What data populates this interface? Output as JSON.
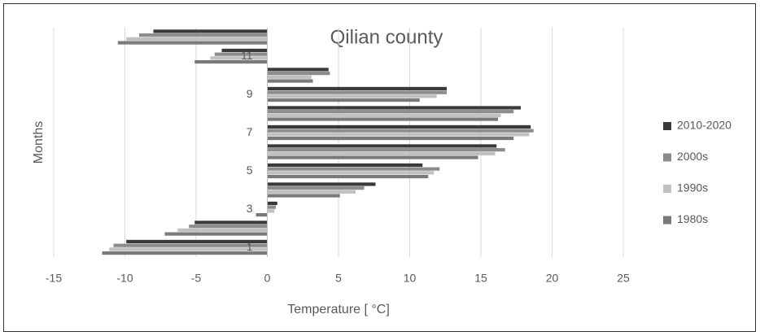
{
  "chart_data": {
    "type": "hbar",
    "title": "Qilian county",
    "x_label": "Temperature [ °C]",
    "y_label": "Months",
    "categories": [
      "1",
      null,
      "3",
      null,
      "5",
      null,
      "7",
      null,
      "9",
      null,
      "11",
      null
    ],
    "series": [
      {
        "name": "2010-2020",
        "color": "#3a3a3a",
        "values": [
          -9.9,
          -5.1,
          0.7,
          7.6,
          10.9,
          16.1,
          18.5,
          17.8,
          12.6,
          4.3,
          -3.2,
          -8.0
        ]
      },
      {
        "name": "2000s",
        "color": "#8c8c8c",
        "values": [
          -10.8,
          -5.5,
          0.6,
          6.8,
          12.1,
          16.7,
          18.7,
          17.3,
          12.6,
          4.4,
          -3.7,
          -9.0
        ]
      },
      {
        "name": "1990s",
        "color": "#c0c0c0",
        "values": [
          -11.1,
          -6.3,
          0.5,
          6.2,
          11.7,
          16.0,
          18.4,
          16.4,
          11.9,
          3.1,
          -4.0,
          -9.9
        ]
      },
      {
        "name": "1980s",
        "color": "#7a7a7a",
        "values": [
          -11.6,
          -7.2,
          -0.8,
          5.1,
          11.3,
          14.8,
          17.3,
          16.2,
          10.7,
          3.2,
          -5.1,
          -10.5
        ]
      }
    ],
    "xlim": [
      -15,
      25
    ],
    "xticks": [
      -15,
      -10,
      -5,
      0,
      5,
      10,
      15,
      20,
      25
    ],
    "grid": true,
    "legend": "right"
  }
}
